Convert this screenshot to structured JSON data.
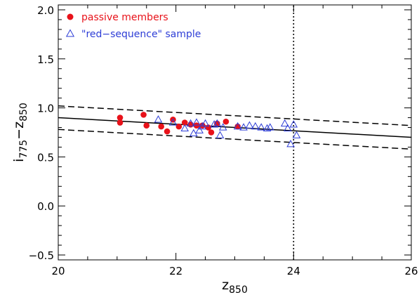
{
  "chart_data": {
    "type": "scatter",
    "xlabel_base": "z",
    "xlabel_sub": "850",
    "ylabel_parts": [
      {
        "text": "i",
        "sub": false
      },
      {
        "text": "775",
        "sub": true
      },
      {
        "text": "−z",
        "sub": false
      },
      {
        "text": "850",
        "sub": true
      }
    ],
    "xlim": [
      20,
      26
    ],
    "ylim": [
      -0.55,
      2.05
    ],
    "x_ticks": [
      {
        "value": 20,
        "label": "20"
      },
      {
        "value": 22,
        "label": "22"
      },
      {
        "value": 24,
        "label": "24"
      },
      {
        "value": 26,
        "label": "26"
      }
    ],
    "y_ticks": [
      {
        "value": -0.5,
        "label": "−0.5"
      },
      {
        "value": 0.0,
        "label": "0.0"
      },
      {
        "value": 0.5,
        "label": "0.5"
      },
      {
        "value": 1.0,
        "label": "1.0"
      },
      {
        "value": 1.5,
        "label": "1.5"
      },
      {
        "value": 2.0,
        "label": "2.0"
      }
    ],
    "x_minor_step": 0.5,
    "y_minor_step": 0.1,
    "grid": false,
    "legend_position": "top-left",
    "series": [
      {
        "name": "passive members",
        "marker": "filled-circle",
        "color": "#e8121a",
        "points": [
          [
            21.05,
            0.9
          ],
          [
            21.05,
            0.85
          ],
          [
            21.45,
            0.93
          ],
          [
            21.5,
            0.82
          ],
          [
            21.75,
            0.81
          ],
          [
            21.85,
            0.76
          ],
          [
            21.95,
            0.88
          ],
          [
            22.05,
            0.81
          ],
          [
            22.15,
            0.85
          ],
          [
            22.25,
            0.83
          ],
          [
            22.35,
            0.82
          ],
          [
            22.45,
            0.82
          ],
          [
            22.55,
            0.8
          ],
          [
            22.6,
            0.75
          ],
          [
            22.7,
            0.84
          ],
          [
            22.85,
            0.86
          ],
          [
            23.05,
            0.81
          ]
        ]
      },
      {
        "name": "\"red−sequence\" sample",
        "marker": "open-triangle",
        "color": "#2d3dd6",
        "points": [
          [
            21.7,
            0.88
          ],
          [
            21.95,
            0.85
          ],
          [
            22.15,
            0.79
          ],
          [
            22.25,
            0.84
          ],
          [
            22.3,
            0.74
          ],
          [
            22.35,
            0.85
          ],
          [
            22.4,
            0.77
          ],
          [
            22.45,
            0.81
          ],
          [
            22.5,
            0.84
          ],
          [
            22.65,
            0.83
          ],
          [
            22.7,
            0.84
          ],
          [
            22.75,
            0.72
          ],
          [
            22.8,
            0.8
          ],
          [
            23.05,
            0.81
          ],
          [
            23.15,
            0.8
          ],
          [
            23.25,
            0.82
          ],
          [
            23.35,
            0.81
          ],
          [
            23.45,
            0.8
          ],
          [
            23.55,
            0.79
          ],
          [
            23.6,
            0.8
          ],
          [
            23.85,
            0.84
          ],
          [
            23.9,
            0.79
          ],
          [
            24.0,
            0.83
          ],
          [
            24.05,
            0.72
          ],
          [
            23.95,
            0.63
          ]
        ]
      }
    ],
    "lines": [
      {
        "role": "fit",
        "style": "solid",
        "x": [
          20,
          26
        ],
        "y": [
          0.9,
          0.7
        ]
      },
      {
        "role": "upper-bound",
        "style": "dashed",
        "x": [
          20,
          26
        ],
        "y": [
          1.02,
          0.82
        ]
      },
      {
        "role": "lower-bound",
        "style": "dashed",
        "x": [
          20,
          26
        ],
        "y": [
          0.78,
          0.58
        ]
      },
      {
        "role": "magnitude-limit",
        "style": "dotted",
        "x": [
          24,
          24
        ],
        "y": [
          -0.55,
          2.05
        ]
      }
    ]
  }
}
